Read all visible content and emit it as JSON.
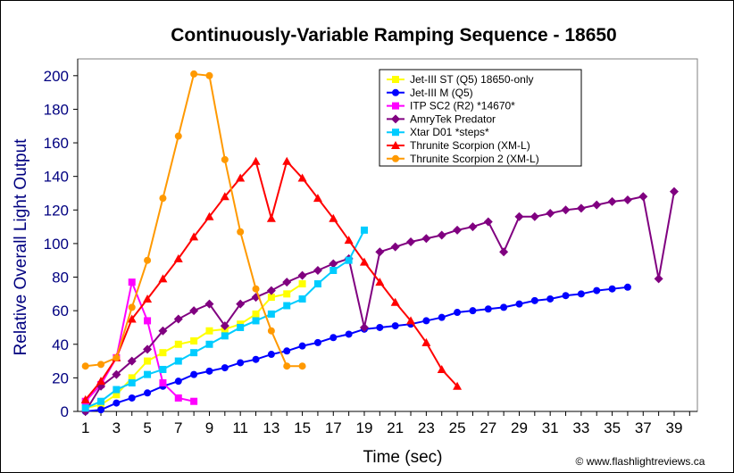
{
  "chart_data": {
    "type": "line",
    "title": "Continuously-Variable Ramping Sequence - 18650",
    "xlabel": "Time (sec)",
    "ylabel": "Relative Overall Light Output",
    "xlim": [
      0.5,
      40.5
    ],
    "ylim": [
      0,
      210
    ],
    "x_ticks": [
      1,
      3,
      5,
      7,
      9,
      11,
      13,
      15,
      17,
      19,
      21,
      23,
      25,
      27,
      29,
      31,
      33,
      35,
      37,
      39
    ],
    "y_ticks": [
      0,
      20,
      40,
      60,
      80,
      100,
      120,
      140,
      160,
      180,
      200
    ],
    "grid": false,
    "legend_position": "top-right",
    "credit": "© www.flashlightreviews.ca",
    "series": [
      {
        "name": "Jet-III ST (Q5) 18650-only",
        "color": "#ffff00",
        "marker": "square",
        "x": [
          1,
          2,
          3,
          4,
          5,
          6,
          7,
          8,
          9,
          10,
          11,
          12,
          13,
          14,
          15
        ],
        "y": [
          2,
          4,
          10,
          20,
          30,
          35,
          40,
          42,
          48,
          49,
          52,
          58,
          68,
          70,
          76
        ]
      },
      {
        "name": "Jet-III M (Q5)",
        "color": "#0000ff",
        "marker": "circle",
        "x": [
          1,
          2,
          3,
          4,
          5,
          6,
          7,
          8,
          9,
          10,
          11,
          12,
          13,
          14,
          15,
          16,
          17,
          18,
          19,
          20,
          21,
          22,
          23,
          24,
          25,
          26,
          27,
          28,
          29,
          30,
          31,
          32,
          33,
          34,
          35,
          36
        ],
        "y": [
          0,
          1,
          5,
          8,
          11,
          15,
          18,
          22,
          24,
          26,
          29,
          31,
          34,
          36,
          39,
          41,
          44,
          46,
          49,
          50,
          51,
          52,
          54,
          56,
          59,
          60,
          61,
          62,
          64,
          66,
          67,
          69,
          70,
          72,
          73,
          74
        ]
      },
      {
        "name": "ITP SC2 (R2) *14670*",
        "color": "#ff00ff",
        "marker": "square",
        "x": [
          1,
          2,
          3,
          4,
          5,
          6,
          7,
          8
        ],
        "y": [
          6,
          16,
          32,
          77,
          54,
          17,
          8,
          6
        ]
      },
      {
        "name": "AmryTek Predator",
        "color": "#800080",
        "marker": "diamond",
        "x": [
          1,
          2,
          3,
          4,
          5,
          6,
          7,
          8,
          9,
          10,
          11,
          12,
          13,
          14,
          15,
          16,
          17,
          18,
          19,
          20,
          21,
          22,
          23,
          24,
          25,
          26,
          27,
          28,
          29,
          30,
          31,
          32,
          33,
          34,
          35,
          36,
          37,
          38,
          39
        ],
        "y": [
          0,
          15,
          22,
          30,
          37,
          48,
          55,
          60,
          64,
          51,
          64,
          68,
          72,
          77,
          81,
          84,
          88,
          91,
          50,
          95,
          98,
          101,
          103,
          105,
          108,
          110,
          113,
          95,
          116,
          116,
          118,
          120,
          121,
          123,
          125,
          126,
          128,
          79,
          131
        ]
      },
      {
        "name": "Xtar D01 *steps*",
        "color": "#00ccff",
        "marker": "square",
        "x": [
          1,
          2,
          3,
          4,
          5,
          6,
          7,
          8,
          9,
          10,
          11,
          12,
          13,
          14,
          15,
          16,
          17,
          18,
          19
        ],
        "y": [
          2,
          6,
          13,
          17,
          22,
          25,
          30,
          35,
          40,
          45,
          50,
          54,
          58,
          63,
          67,
          76,
          84,
          90,
          108
        ]
      },
      {
        "name": "Thrunite Scorpion (XM-L)",
        "color": "#ff0000",
        "marker": "triangle",
        "x": [
          1,
          2,
          3,
          4,
          5,
          6,
          7,
          8,
          9,
          10,
          11,
          12,
          13,
          14,
          15,
          16,
          17,
          18,
          19,
          20,
          21,
          22,
          23,
          24,
          25
        ],
        "y": [
          7,
          18,
          32,
          55,
          67,
          79,
          91,
          104,
          116,
          128,
          139,
          149,
          115,
          149,
          139,
          127,
          115,
          102,
          89,
          77,
          65,
          54,
          41,
          25,
          15
        ]
      },
      {
        "name": "Thrunite Scorpion 2 (XM-L)",
        "color": "#ff9900",
        "marker": "circle",
        "x": [
          1,
          2,
          3,
          4,
          5,
          6,
          7,
          8,
          9,
          10,
          11,
          12,
          13,
          14,
          15
        ],
        "y": [
          27,
          28,
          32,
          62,
          90,
          127,
          164,
          201,
          200,
          150,
          107,
          73,
          48,
          27,
          27
        ]
      }
    ]
  }
}
